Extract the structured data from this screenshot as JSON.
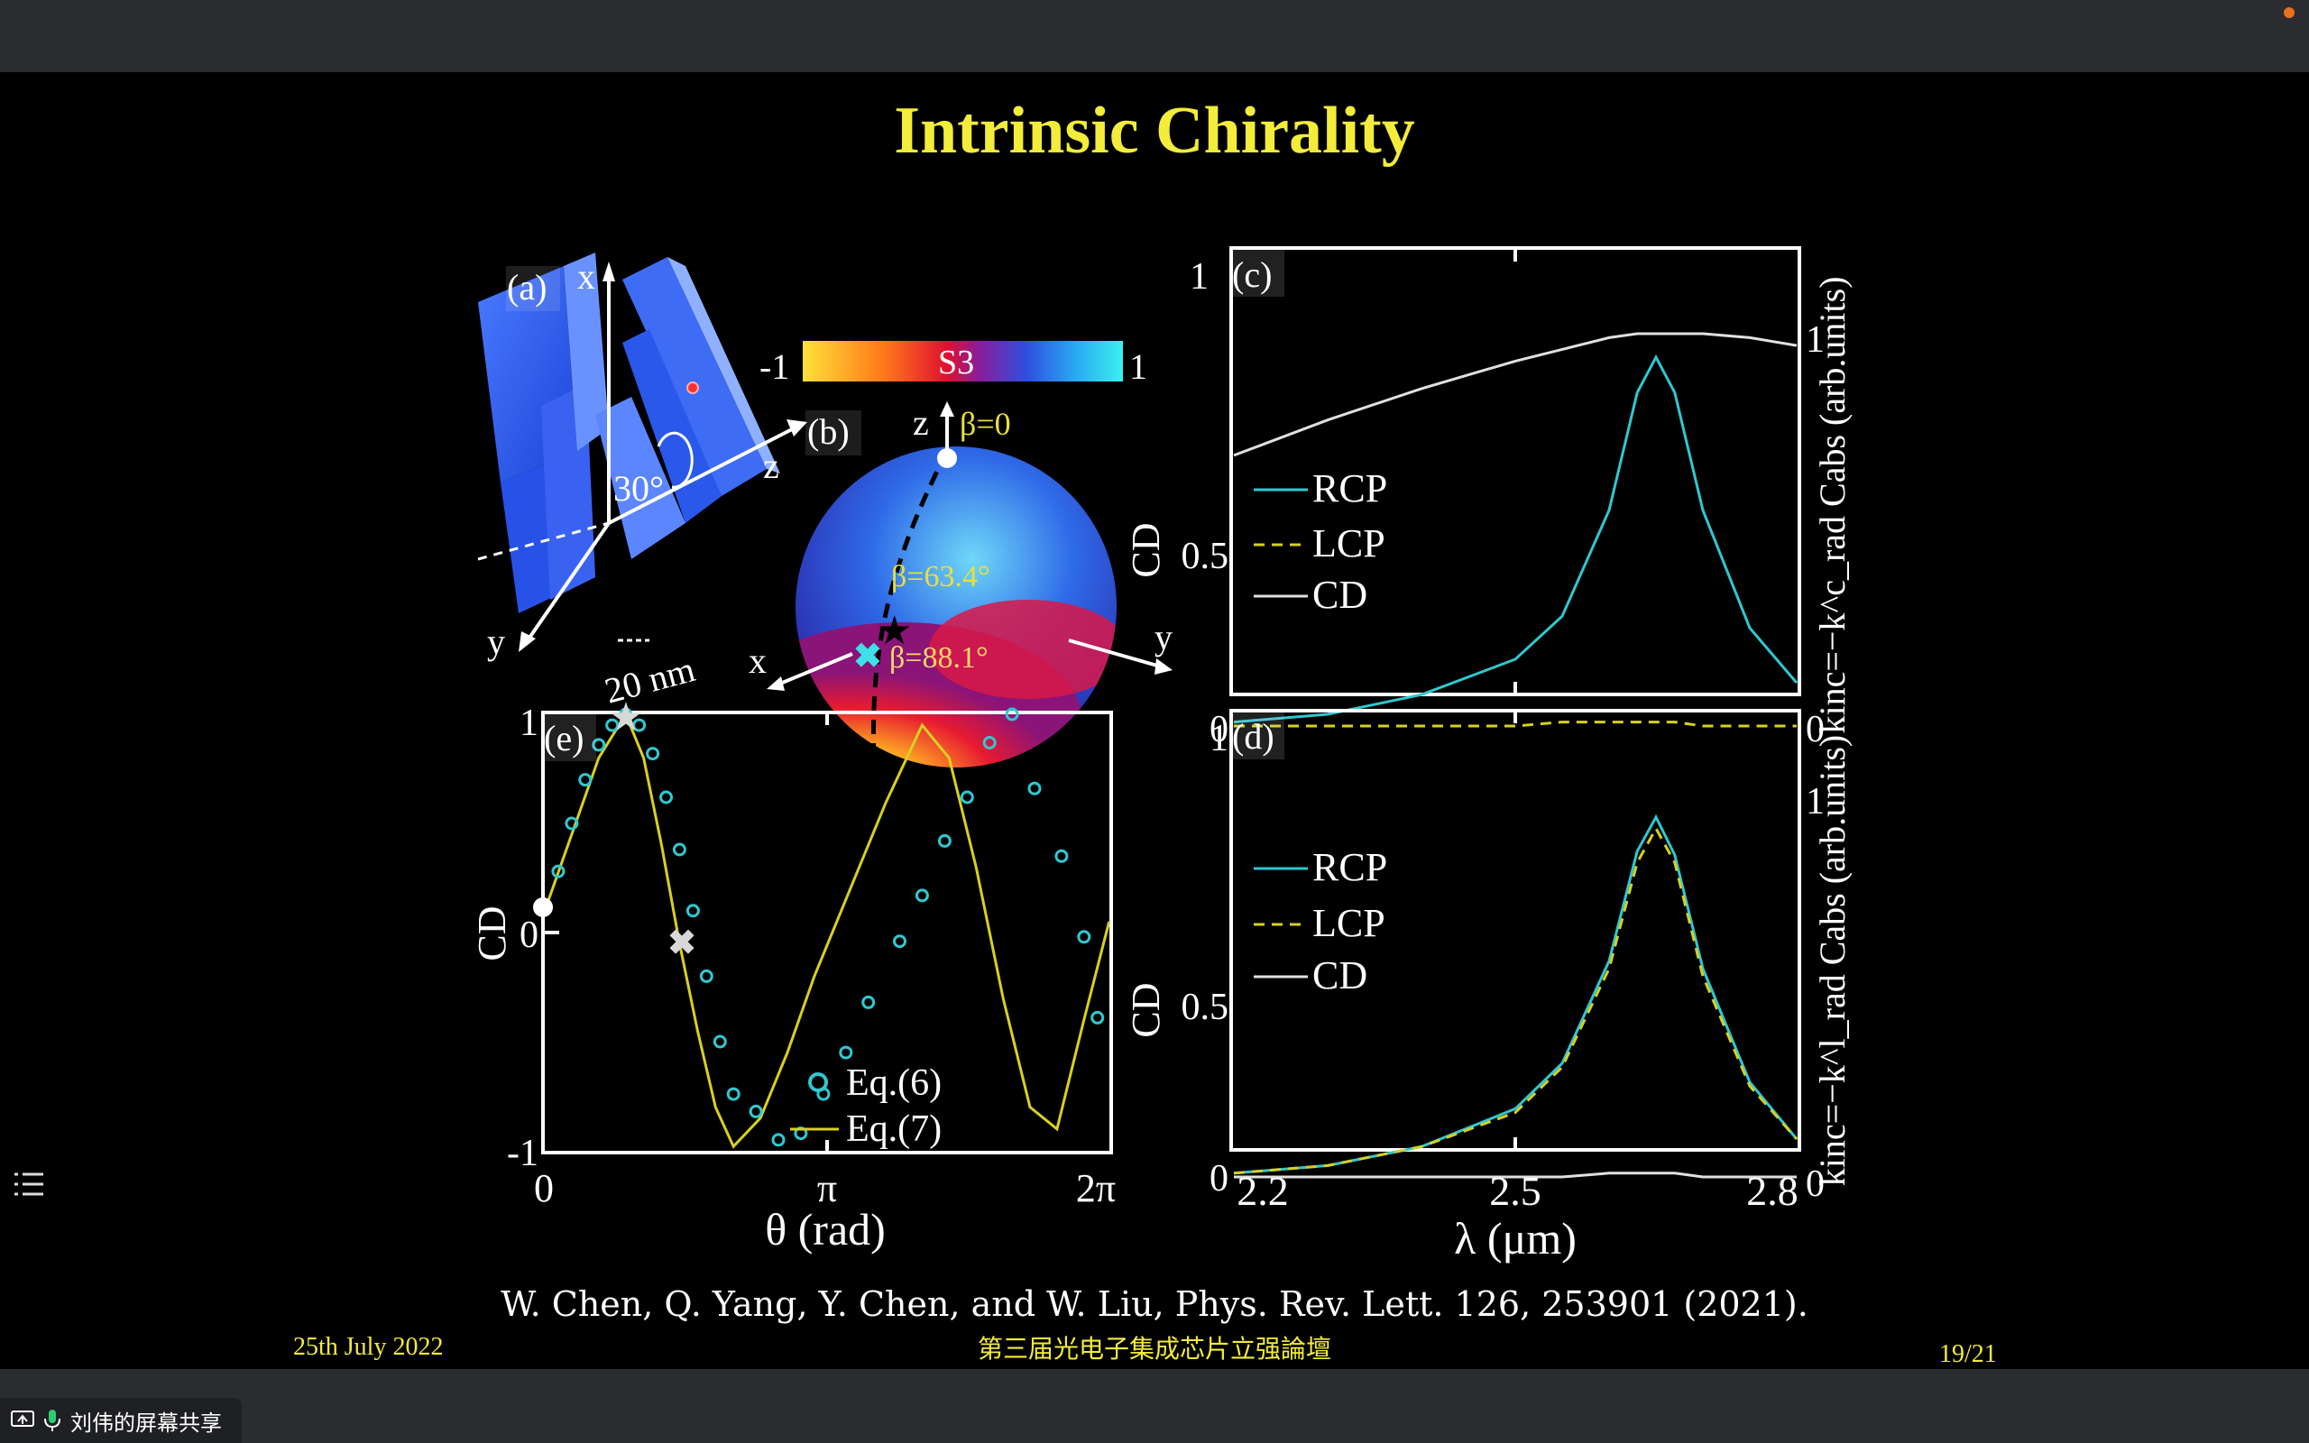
{
  "slide": {
    "title": "Intrinsic Chirality",
    "citation": "W. Chen, Q. Yang, Y. Chen, and W. Liu, Phys. Rev. Lett. 126, 253901 (2021).",
    "date": "25th July 2022",
    "conference": "第三届光电子集成芯片立强論壇",
    "page": "19/21"
  },
  "share": {
    "label": "刘伟的屏幕共享"
  },
  "icons": {
    "collapse": "chevron-left-icon",
    "toc": "list-icon",
    "share": "screen-share-icon",
    "mic": "microphone-icon"
  },
  "colors": {
    "title": "#f3ec3a",
    "rcp": "#2fc8d0",
    "lcp": "#d8d020",
    "cd": "#ffffff"
  },
  "panel_a": {
    "tag": "(a)",
    "x": "x",
    "y": "y",
    "z": "z",
    "angle": "30°",
    "size": "20 nm"
  },
  "panel_b": {
    "tag": "(b)",
    "cb_min": "-1",
    "cb_max": "1",
    "cb_label": "S3",
    "z": "z",
    "x": "x",
    "y": "y",
    "beta0": "β=0",
    "beta1": "β=63.4°",
    "beta2": "β=88.1°"
  },
  "chart_data": [
    {
      "type": "line",
      "panel": "(c)",
      "x": [
        2.2,
        2.3,
        2.4,
        2.5,
        2.55,
        2.6,
        2.63,
        2.65,
        2.67,
        2.7,
        2.75,
        2.8
      ],
      "xlim": [
        2.2,
        2.8
      ],
      "ylim": [
        0,
        1
      ],
      "ylabel": "CD",
      "ylabel_right": "kinc=−k^c_rad    Cabs (arb.units)",
      "left_ticks": [
        "0",
        "0.5",
        "1"
      ],
      "right_ticks": [
        "0",
        "1"
      ],
      "series": [
        {
          "name": "RCP",
          "values": [
            0.01,
            0.03,
            0.08,
            0.17,
            0.28,
            0.55,
            0.85,
            0.94,
            0.85,
            0.55,
            0.25,
            0.11
          ]
        },
        {
          "name": "LCP",
          "values": [
            0.0,
            0.0,
            0.0,
            0.0,
            0.01,
            0.01,
            0.01,
            0.01,
            0.01,
            0.0,
            0.0,
            0.0
          ]
        },
        {
          "name": "CD",
          "values": [
            0.69,
            0.78,
            0.86,
            0.93,
            0.96,
            0.99,
            1.0,
            1.0,
            1.0,
            1.0,
            0.99,
            0.97
          ]
        }
      ],
      "legend": [
        "RCP",
        "LCP",
        "CD"
      ]
    },
    {
      "type": "line",
      "panel": "(d)",
      "x": [
        2.2,
        2.3,
        2.4,
        2.5,
        2.55,
        2.6,
        2.63,
        2.65,
        2.67,
        2.7,
        2.75,
        2.8
      ],
      "xlim": [
        2.2,
        2.8
      ],
      "ylim": [
        0,
        1
      ],
      "xlabel": "λ (μm)",
      "ylabel": "CD",
      "ylabel_right": "kinc=−k^l_rad    Cabs (arb.units)",
      "x_ticks": [
        "2.2",
        "2.5",
        "2.8"
      ],
      "left_ticks": [
        "0",
        "0.5",
        "1"
      ],
      "right_ticks": [
        "0",
        "1"
      ],
      "series": [
        {
          "name": "RCP",
          "values": [
            0.01,
            0.03,
            0.08,
            0.18,
            0.3,
            0.57,
            0.86,
            0.95,
            0.85,
            0.55,
            0.25,
            0.1
          ]
        },
        {
          "name": "LCP",
          "values": [
            0.01,
            0.03,
            0.08,
            0.17,
            0.29,
            0.55,
            0.83,
            0.92,
            0.83,
            0.53,
            0.24,
            0.1
          ]
        },
        {
          "name": "CD",
          "values": [
            0.0,
            0.0,
            0.0,
            0.0,
            0.0,
            0.01,
            0.01,
            0.01,
            0.01,
            0.0,
            0.0,
            0.0
          ]
        }
      ],
      "legend": [
        "RCP",
        "LCP",
        "CD"
      ]
    },
    {
      "type": "line",
      "panel": "(e)",
      "xlim": [
        0,
        6.2832
      ],
      "ylim": [
        -1,
        1
      ],
      "xlabel": "θ (rad)",
      "ylabel": "CD",
      "x_ticks": [
        "0",
        "π",
        "2π"
      ],
      "y_ticks": [
        "-1",
        "0",
        "1"
      ],
      "series": [
        {
          "name": "Eq.(6)",
          "style": "markers",
          "x": [
            0.15,
            0.3,
            0.45,
            0.6,
            0.75,
            0.9,
            1.05,
            1.2,
            1.35,
            1.5,
            1.65,
            1.8,
            1.95,
            2.1,
            2.35,
            2.6,
            2.85,
            3.1,
            3.35,
            3.6,
            3.95,
            4.2,
            4.45,
            4.7,
            4.95,
            5.2,
            5.45,
            5.75,
            6.0,
            6.15
          ],
          "y": [
            0.28,
            0.5,
            0.7,
            0.86,
            0.95,
            1.0,
            0.95,
            0.82,
            0.62,
            0.38,
            0.1,
            -0.2,
            -0.5,
            -0.74,
            -0.82,
            -0.95,
            -0.92,
            -0.74,
            -0.55,
            -0.32,
            -0.04,
            0.17,
            0.42,
            0.62,
            0.87,
            1.0,
            0.66,
            0.35,
            -0.02,
            -0.39
          ]
        },
        {
          "name": "Eq.(7)",
          "style": "line",
          "x": [
            0,
            0.3,
            0.6,
            0.9,
            1.1,
            1.3,
            1.5,
            1.7,
            1.9,
            2.1,
            2.4,
            2.7,
            3.0,
            3.4,
            3.8,
            4.2,
            4.5,
            4.8,
            5.1,
            5.4,
            5.7,
            6.0,
            6.28
          ],
          "y": [
            0.1,
            0.45,
            0.8,
            1.0,
            0.8,
            0.4,
            -0.05,
            -0.45,
            -0.8,
            -0.98,
            -0.85,
            -0.55,
            -0.2,
            0.2,
            0.6,
            0.95,
            0.8,
            0.3,
            -0.3,
            -0.8,
            -0.9,
            -0.4,
            0.05
          ]
        }
      ],
      "legend": [
        "Eq.(6)",
        "Eq.(7)"
      ]
    }
  ]
}
